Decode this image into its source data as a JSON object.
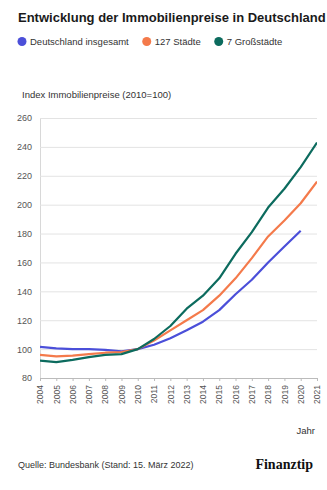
{
  "chart_data": {
    "type": "line",
    "title": "Entwicklung der Immobilienpreise in Deutschland",
    "y_label": "Index Immobilienpreise (2010=100)",
    "x_label": "Jahr",
    "source": "Quelle: Bundesbank (Stand: 15. März 2022)",
    "brand": "Finanztip",
    "x": [
      2004,
      2005,
      2006,
      2007,
      2008,
      2009,
      2010,
      2011,
      2012,
      2013,
      2014,
      2015,
      2016,
      2017,
      2018,
      2019,
      2020,
      2021
    ],
    "xlim": [
      2004,
      2021
    ],
    "xticks": [
      2004,
      2005,
      2006,
      2007,
      2008,
      2009,
      2010,
      2011,
      2012,
      2013,
      2014,
      2015,
      2016,
      2017,
      2018,
      2019,
      2020,
      2021
    ],
    "ylim": [
      80,
      260
    ],
    "yticks": [
      80,
      100,
      120,
      140,
      160,
      180,
      200,
      220,
      240,
      260
    ],
    "grid": true,
    "legend": "top-left",
    "series": [
      {
        "name": "Deutschland insgesamt",
        "color": "#4b4fd9",
        "values": [
          101.5,
          100.5,
          100,
          100,
          99.5,
          98.5,
          100,
          103,
          107.5,
          113,
          119,
          127,
          138,
          148,
          160,
          171,
          182,
          null
        ]
      },
      {
        "name": "127 Städte",
        "color": "#f47a4b",
        "values": [
          96,
          95,
          95.5,
          96.5,
          97.5,
          98,
          100,
          106,
          113,
          120,
          127,
          137,
          149,
          163,
          178,
          189,
          201,
          216
        ]
      },
      {
        "name": "7 Großstädte",
        "color": "#0c6b5e",
        "values": [
          92,
          91,
          92.5,
          94.5,
          96,
          96.5,
          100,
          107,
          116,
          128,
          137,
          149,
          166,
          181,
          198,
          211,
          226,
          243
        ]
      }
    ]
  }
}
